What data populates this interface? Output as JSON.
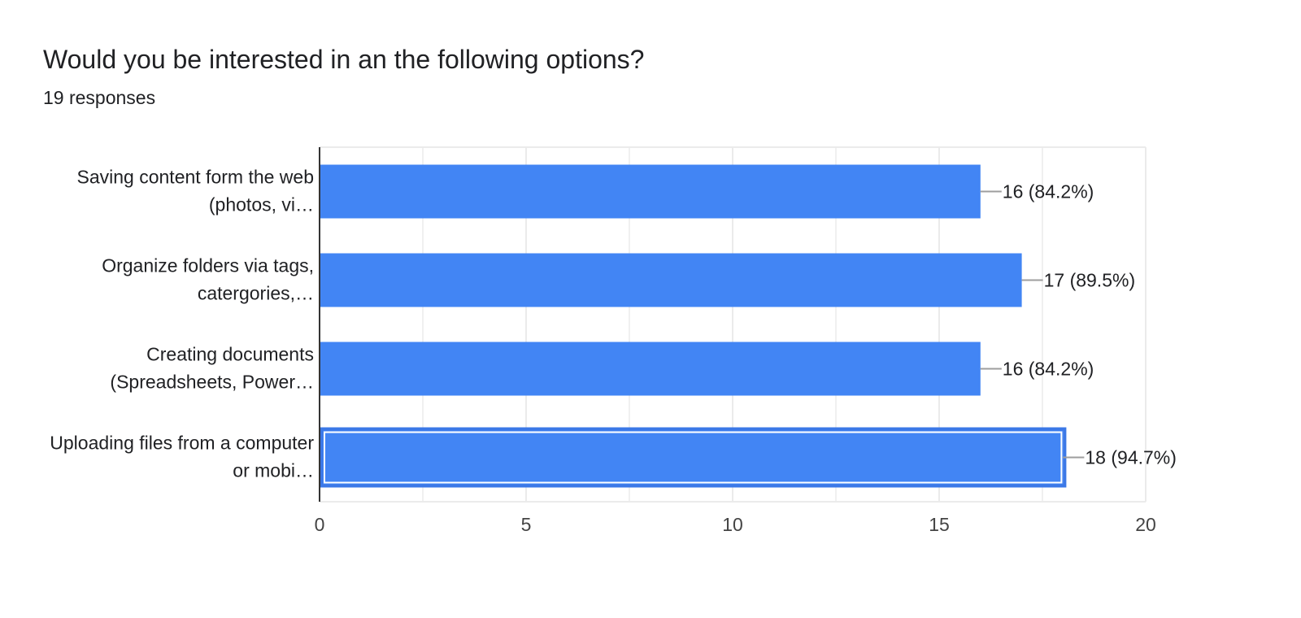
{
  "header": {
    "title": "Would you be interested in an the following options?",
    "responses": "19 responses"
  },
  "chart_data": {
    "type": "bar",
    "orientation": "horizontal",
    "categories": [
      [
        "Saving content form the web",
        "(photos, vi…"
      ],
      [
        "Organize folders via tags,",
        "catergories,…"
      ],
      [
        "Creating documents",
        "(Spreadsheets, Power…"
      ],
      [
        "Uploading files from a computer",
        "or mobi…"
      ]
    ],
    "values": [
      16,
      17,
      16,
      18
    ],
    "data_labels": [
      "16 (84.2%)",
      "17 (89.5%)",
      "16 (84.2%)",
      "18 (94.7%)"
    ],
    "xlim": [
      0,
      20
    ],
    "xticks": [
      0,
      5,
      10,
      15,
      20
    ],
    "grid": true,
    "highlighted_index": 3,
    "colors": {
      "bar": "#4285f4",
      "bar_border": "#3b78e7",
      "grid": "#ebebeb",
      "axis": "#333333",
      "leader": "#9e9e9e"
    }
  }
}
